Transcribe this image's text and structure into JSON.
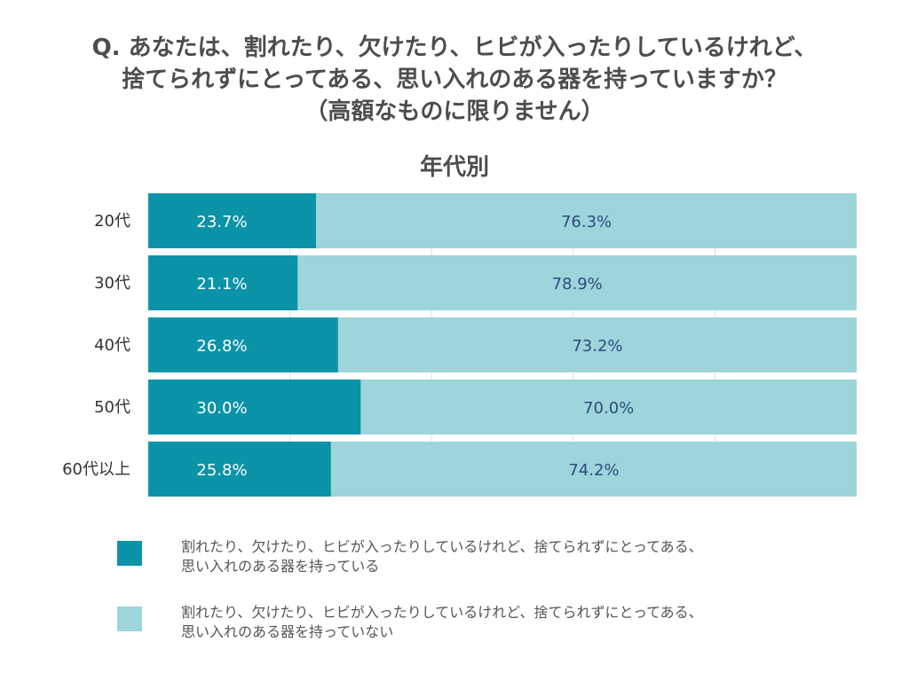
{
  "title_lines": [
    "Q. あなたは、割れたり、欠けたり、ヒビが入ったりしているけれど、",
    "捨てられずにとってある、思い入れのある器を持っていますか？",
    "（高額なものに限りません）"
  ],
  "colors": {
    "series1": "#0b93a8",
    "series2": "#9dd5da",
    "label_light": "#ffffff",
    "label_dark": "#2e4a7d",
    "grid": "#dddddd"
  },
  "legend": [
    {
      "line1": "割れたり、欠けたり、ヒビが入ったりしているけれど、捨てられずにとってある、",
      "line2": "思い入れのある器を持っている"
    },
    {
      "line1": "割れたり、欠けたり、ヒビが入ったりしているけれど、捨てられずにとってある、",
      "line2": "思い入れのある器を持っていない"
    }
  ],
  "chart_data": {
    "type": "bar",
    "orientation": "horizontal",
    "stacked": true,
    "title": "年代別",
    "categories": [
      "20代",
      "30代",
      "40代",
      "50代",
      "60代以上"
    ],
    "series": [
      {
        "name": "割れたり、欠けたり、ヒビが入ったりしているけれど、捨てられずにとってある、思い入れのある器を持っている",
        "values": [
          23.7,
          21.1,
          26.8,
          30.0,
          25.8
        ],
        "labels": [
          "23.7%",
          "21.1%",
          "26.8%",
          "30.0%",
          "25.8%"
        ]
      },
      {
        "name": "割れたり、欠けたり、ヒビが入ったりしているけれど、捨てられずにとってある、思い入れのある器を持っていない",
        "values": [
          76.3,
          78.9,
          73.2,
          70.0,
          74.2
        ],
        "labels": [
          "76.3%",
          "78.9%",
          "73.2%",
          "70.0%",
          "74.2%"
        ]
      }
    ],
    "xlim": [
      0,
      100
    ],
    "grid": true,
    "legend_position": "bottom"
  }
}
